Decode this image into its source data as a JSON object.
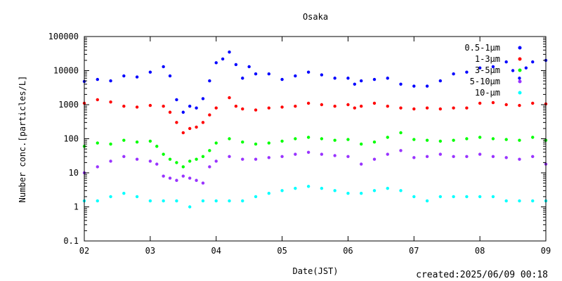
{
  "chart_data": {
    "type": "scatter",
    "title": "Osaka",
    "xlabel": "Date(JST)",
    "ylabel": "Number conc.[particles/L]",
    "y_scale": "log",
    "xlim": [
      2,
      9
    ],
    "ylim": [
      0.1,
      100000
    ],
    "x_ticks": [
      "02",
      "03",
      "04",
      "05",
      "06",
      "07",
      "08",
      "09"
    ],
    "y_ticks": [
      "0.1",
      "1",
      "10",
      "100",
      "1000",
      "10000",
      "100000"
    ],
    "legend_position": "top-right",
    "series": [
      {
        "name": "0.5-1μm",
        "color": "#0000ff",
        "points": [
          [
            2.0,
            4800
          ],
          [
            2.2,
            5500
          ],
          [
            2.4,
            5000
          ],
          [
            2.6,
            7000
          ],
          [
            2.8,
            6500
          ],
          [
            3.0,
            9000
          ],
          [
            3.2,
            13000
          ],
          [
            3.3,
            7000
          ],
          [
            3.4,
            1400
          ],
          [
            3.5,
            600
          ],
          [
            3.6,
            900
          ],
          [
            3.7,
            800
          ],
          [
            3.8,
            1500
          ],
          [
            3.9,
            5000
          ],
          [
            4.0,
            17000
          ],
          [
            4.1,
            22000
          ],
          [
            4.2,
            35000
          ],
          [
            4.3,
            15000
          ],
          [
            4.4,
            6000
          ],
          [
            4.5,
            13000
          ],
          [
            4.6,
            8000
          ],
          [
            4.8,
            8000
          ],
          [
            5.0,
            5500
          ],
          [
            5.2,
            7000
          ],
          [
            5.4,
            9000
          ],
          [
            5.6,
            7500
          ],
          [
            5.8,
            6000
          ],
          [
            6.0,
            6000
          ],
          [
            6.1,
            4000
          ],
          [
            6.2,
            5000
          ],
          [
            6.4,
            5500
          ],
          [
            6.6,
            6000
          ],
          [
            6.8,
            4000
          ],
          [
            7.0,
            3500
          ],
          [
            7.2,
            3500
          ],
          [
            7.4,
            5000
          ],
          [
            7.6,
            8000
          ],
          [
            7.8,
            9000
          ],
          [
            8.0,
            12000
          ],
          [
            8.2,
            13000
          ],
          [
            8.4,
            18000
          ],
          [
            8.5,
            10000
          ],
          [
            8.6,
            6000
          ],
          [
            8.7,
            12000
          ],
          [
            8.8,
            18000
          ],
          [
            9.0,
            20000
          ]
        ]
      },
      {
        "name": "1-3μm",
        "color": "#ff0000",
        "points": [
          [
            2.0,
            1100
          ],
          [
            2.2,
            1400
          ],
          [
            2.4,
            1200
          ],
          [
            2.6,
            900
          ],
          [
            2.8,
            850
          ],
          [
            3.0,
            950
          ],
          [
            3.2,
            900
          ],
          [
            3.3,
            600
          ],
          [
            3.4,
            300
          ],
          [
            3.5,
            150
          ],
          [
            3.6,
            200
          ],
          [
            3.7,
            220
          ],
          [
            3.8,
            300
          ],
          [
            3.9,
            500
          ],
          [
            4.0,
            800
          ],
          [
            4.2,
            1600
          ],
          [
            4.3,
            900
          ],
          [
            4.4,
            750
          ],
          [
            4.6,
            700
          ],
          [
            4.8,
            800
          ],
          [
            5.0,
            850
          ],
          [
            5.2,
            900
          ],
          [
            5.4,
            1100
          ],
          [
            5.6,
            1000
          ],
          [
            5.8,
            900
          ],
          [
            6.0,
            1000
          ],
          [
            6.1,
            800
          ],
          [
            6.2,
            900
          ],
          [
            6.4,
            1100
          ],
          [
            6.6,
            900
          ],
          [
            6.8,
            800
          ],
          [
            7.0,
            750
          ],
          [
            7.2,
            800
          ],
          [
            7.4,
            750
          ],
          [
            7.6,
            800
          ],
          [
            7.8,
            800
          ],
          [
            8.0,
            1100
          ],
          [
            8.2,
            1150
          ],
          [
            8.4,
            1000
          ],
          [
            8.6,
            950
          ],
          [
            8.8,
            1100
          ],
          [
            9.0,
            1050
          ]
        ]
      },
      {
        "name": "3-5μm",
        "color": "#00ff00",
        "points": [
          [
            2.0,
            60
          ],
          [
            2.2,
            75
          ],
          [
            2.4,
            70
          ],
          [
            2.6,
            90
          ],
          [
            2.8,
            80
          ],
          [
            3.0,
            85
          ],
          [
            3.1,
            60
          ],
          [
            3.2,
            35
          ],
          [
            3.3,
            25
          ],
          [
            3.4,
            20
          ],
          [
            3.5,
            15
          ],
          [
            3.6,
            22
          ],
          [
            3.7,
            25
          ],
          [
            3.8,
            30
          ],
          [
            3.9,
            45
          ],
          [
            4.0,
            75
          ],
          [
            4.2,
            100
          ],
          [
            4.4,
            80
          ],
          [
            4.6,
            70
          ],
          [
            4.8,
            75
          ],
          [
            5.0,
            85
          ],
          [
            5.2,
            100
          ],
          [
            5.4,
            110
          ],
          [
            5.6,
            100
          ],
          [
            5.8,
            90
          ],
          [
            6.0,
            95
          ],
          [
            6.2,
            70
          ],
          [
            6.4,
            80
          ],
          [
            6.6,
            110
          ],
          [
            6.8,
            150
          ],
          [
            7.0,
            95
          ],
          [
            7.2,
            90
          ],
          [
            7.4,
            85
          ],
          [
            7.6,
            90
          ],
          [
            7.8,
            100
          ],
          [
            8.0,
            110
          ],
          [
            8.2,
            100
          ],
          [
            8.4,
            95
          ],
          [
            8.6,
            90
          ],
          [
            8.8,
            110
          ],
          [
            9.0,
            90
          ]
        ]
      },
      {
        "name": "5-10μm",
        "color": "#9933ff",
        "points": [
          [
            2.0,
            10
          ],
          [
            2.2,
            15
          ],
          [
            2.4,
            22
          ],
          [
            2.6,
            30
          ],
          [
            2.8,
            25
          ],
          [
            3.0,
            22
          ],
          [
            3.1,
            18
          ],
          [
            3.2,
            8
          ],
          [
            3.3,
            7
          ],
          [
            3.4,
            6
          ],
          [
            3.5,
            8
          ],
          [
            3.6,
            7
          ],
          [
            3.7,
            6
          ],
          [
            3.8,
            5
          ],
          [
            3.9,
            15
          ],
          [
            4.0,
            22
          ],
          [
            4.2,
            30
          ],
          [
            4.4,
            25
          ],
          [
            4.6,
            25
          ],
          [
            4.8,
            28
          ],
          [
            5.0,
            30
          ],
          [
            5.2,
            35
          ],
          [
            5.4,
            40
          ],
          [
            5.6,
            35
          ],
          [
            5.8,
            32
          ],
          [
            6.0,
            30
          ],
          [
            6.2,
            18
          ],
          [
            6.4,
            25
          ],
          [
            6.6,
            35
          ],
          [
            6.8,
            45
          ],
          [
            7.0,
            28
          ],
          [
            7.2,
            30
          ],
          [
            7.4,
            35
          ],
          [
            7.6,
            30
          ],
          [
            7.8,
            30
          ],
          [
            8.0,
            35
          ],
          [
            8.2,
            30
          ],
          [
            8.4,
            28
          ],
          [
            8.6,
            25
          ],
          [
            8.8,
            30
          ],
          [
            9.0,
            18
          ]
        ]
      },
      {
        "name": "10-μm",
        "color": "#00ffff",
        "points": [
          [
            2.0,
            1.5
          ],
          [
            2.2,
            1.5
          ],
          [
            2.4,
            2.0
          ],
          [
            2.6,
            2.5
          ],
          [
            2.8,
            2.0
          ],
          [
            3.0,
            1.5
          ],
          [
            3.2,
            1.5
          ],
          [
            3.4,
            1.5
          ],
          [
            3.6,
            1.0
          ],
          [
            3.8,
            1.5
          ],
          [
            4.0,
            1.5
          ],
          [
            4.2,
            1.5
          ],
          [
            4.4,
            1.5
          ],
          [
            4.6,
            2.0
          ],
          [
            4.8,
            2.5
          ],
          [
            5.0,
            3.0
          ],
          [
            5.2,
            3.5
          ],
          [
            5.4,
            4.0
          ],
          [
            5.6,
            3.5
          ],
          [
            5.8,
            3.0
          ],
          [
            6.0,
            2.5
          ],
          [
            6.2,
            2.5
          ],
          [
            6.4,
            3.0
          ],
          [
            6.6,
            3.5
          ],
          [
            6.8,
            3.0
          ],
          [
            7.0,
            2.0
          ],
          [
            7.2,
            1.5
          ],
          [
            7.4,
            2.0
          ],
          [
            7.6,
            2.0
          ],
          [
            7.8,
            2.0
          ],
          [
            8.0,
            2.0
          ],
          [
            8.2,
            2.0
          ],
          [
            8.4,
            1.5
          ],
          [
            8.6,
            1.5
          ],
          [
            8.8,
            1.5
          ],
          [
            9.0,
            1.5
          ]
        ]
      }
    ]
  },
  "footer": {
    "created": "created:2025/06/09 00:18"
  }
}
